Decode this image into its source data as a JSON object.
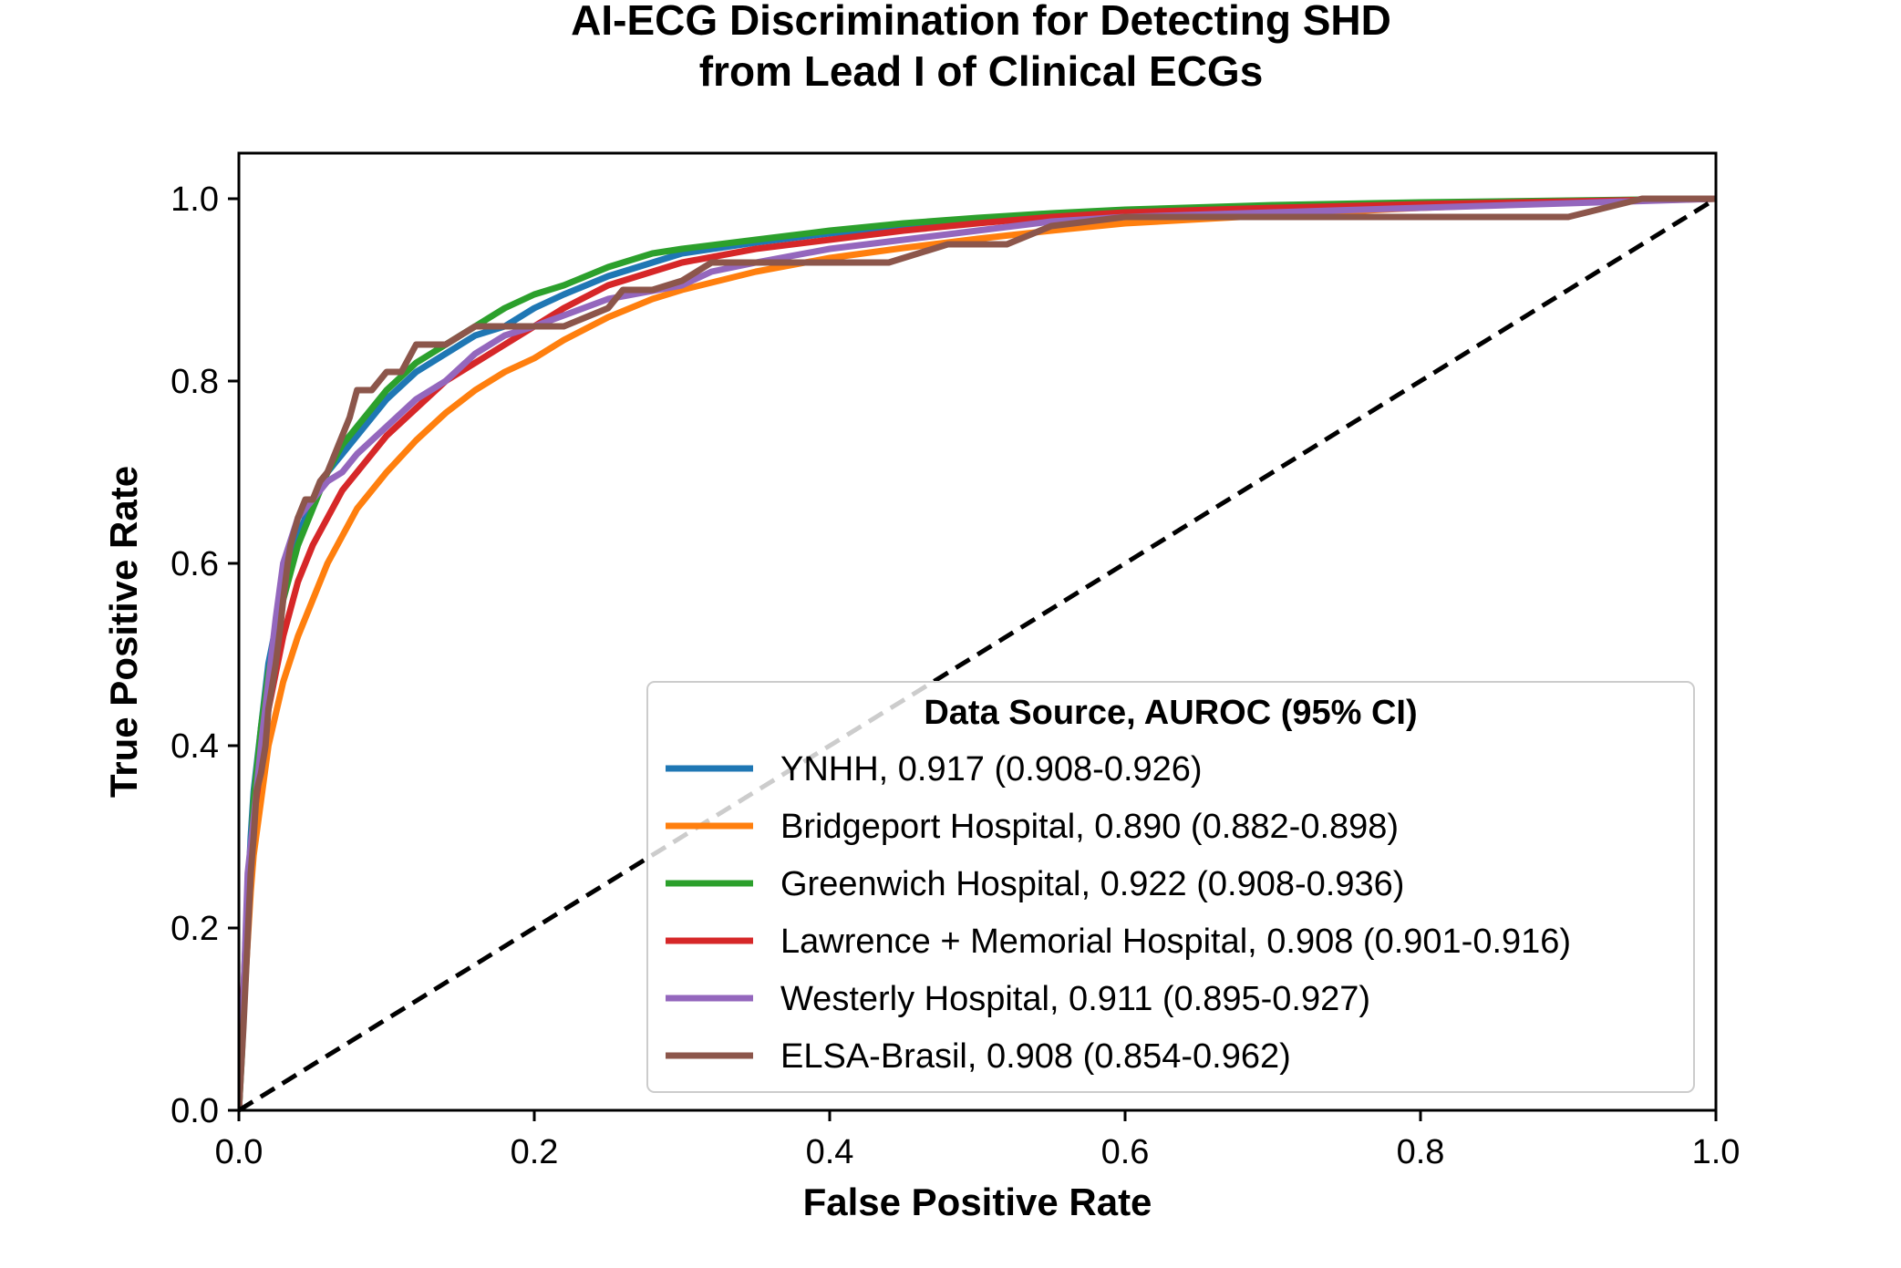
{
  "chart_data": {
    "type": "line",
    "title": [
      "AI-ECG Discrimination for Detecting SHD",
      "from Lead I of Clinical ECGs"
    ],
    "xlabel": "False Positive Rate",
    "ylabel": "True Positive Rate",
    "xlim": [
      0.0,
      1.0
    ],
    "ylim": [
      0.0,
      1.05
    ],
    "xticks": [
      "0.0",
      "0.2",
      "0.4",
      "0.6",
      "0.8",
      "1.0"
    ],
    "yticks": [
      "0.0",
      "0.2",
      "0.4",
      "0.6",
      "0.8",
      "1.0"
    ],
    "grid": false,
    "legend": {
      "title": "Data Source, AUROC (95% CI)",
      "placement": "lower-right"
    },
    "reference_line": {
      "style": "dashed",
      "color": "#000000",
      "x": [
        0.0,
        1.0
      ],
      "y": [
        0.0,
        1.0
      ]
    },
    "series": [
      {
        "name": "YNHH, 0.917 (0.908-0.926)",
        "color": "#1f77b4",
        "x": [
          0,
          0.002,
          0.005,
          0.008,
          0.01,
          0.015,
          0.02,
          0.03,
          0.04,
          0.05,
          0.06,
          0.07,
          0.08,
          0.1,
          0.12,
          0.14,
          0.16,
          0.18,
          0.2,
          0.22,
          0.25,
          0.28,
          0.3,
          0.35,
          0.4,
          0.45,
          0.5,
          0.55,
          0.6,
          0.7,
          0.8,
          0.9,
          1.0
        ],
        "y": [
          0,
          0.08,
          0.2,
          0.3,
          0.35,
          0.42,
          0.49,
          0.57,
          0.63,
          0.67,
          0.7,
          0.72,
          0.74,
          0.78,
          0.81,
          0.83,
          0.85,
          0.86,
          0.88,
          0.895,
          0.915,
          0.93,
          0.94,
          0.952,
          0.962,
          0.97,
          0.976,
          0.982,
          0.986,
          0.99,
          0.994,
          0.997,
          1.0
        ]
      },
      {
        "name": "Bridgeport Hospital, 0.890 (0.882-0.898)",
        "color": "#ff7f0e",
        "x": [
          0,
          0.002,
          0.005,
          0.008,
          0.01,
          0.015,
          0.02,
          0.03,
          0.04,
          0.05,
          0.06,
          0.07,
          0.08,
          0.1,
          0.12,
          0.14,
          0.16,
          0.18,
          0.2,
          0.22,
          0.25,
          0.28,
          0.3,
          0.35,
          0.4,
          0.45,
          0.5,
          0.55,
          0.6,
          0.7,
          0.8,
          0.9,
          1.0
        ],
        "y": [
          0,
          0.07,
          0.16,
          0.24,
          0.28,
          0.34,
          0.4,
          0.47,
          0.52,
          0.56,
          0.6,
          0.63,
          0.66,
          0.7,
          0.735,
          0.765,
          0.79,
          0.81,
          0.825,
          0.845,
          0.87,
          0.89,
          0.9,
          0.92,
          0.935,
          0.946,
          0.956,
          0.965,
          0.973,
          0.982,
          0.99,
          0.996,
          1.0
        ]
      },
      {
        "name": "Greenwich Hospital, 0.922 (0.908-0.936)",
        "color": "#2ca02c",
        "x": [
          0,
          0.002,
          0.005,
          0.008,
          0.01,
          0.015,
          0.02,
          0.03,
          0.04,
          0.05,
          0.06,
          0.07,
          0.08,
          0.1,
          0.12,
          0.14,
          0.16,
          0.18,
          0.2,
          0.22,
          0.25,
          0.28,
          0.3,
          0.35,
          0.4,
          0.45,
          0.5,
          0.55,
          0.6,
          0.7,
          0.8,
          0.9,
          1.0
        ],
        "y": [
          0,
          0.06,
          0.17,
          0.28,
          0.34,
          0.42,
          0.48,
          0.56,
          0.62,
          0.66,
          0.7,
          0.73,
          0.75,
          0.79,
          0.82,
          0.84,
          0.86,
          0.88,
          0.895,
          0.905,
          0.925,
          0.94,
          0.945,
          0.955,
          0.965,
          0.973,
          0.979,
          0.984,
          0.988,
          0.993,
          0.996,
          0.998,
          1.0
        ]
      },
      {
        "name": "Lawrence + Memorial Hospital, 0.908 (0.901-0.916)",
        "color": "#d62728",
        "x": [
          0,
          0.002,
          0.005,
          0.008,
          0.01,
          0.015,
          0.02,
          0.03,
          0.04,
          0.05,
          0.06,
          0.07,
          0.08,
          0.1,
          0.12,
          0.14,
          0.16,
          0.18,
          0.2,
          0.22,
          0.25,
          0.28,
          0.3,
          0.35,
          0.4,
          0.45,
          0.5,
          0.55,
          0.6,
          0.7,
          0.8,
          0.9,
          1.0
        ],
        "y": [
          0,
          0.09,
          0.2,
          0.28,
          0.32,
          0.38,
          0.44,
          0.52,
          0.58,
          0.62,
          0.65,
          0.68,
          0.7,
          0.74,
          0.77,
          0.8,
          0.82,
          0.84,
          0.86,
          0.88,
          0.905,
          0.92,
          0.93,
          0.945,
          0.955,
          0.965,
          0.973,
          0.98,
          0.985,
          0.99,
          0.994,
          0.997,
          1.0
        ]
      },
      {
        "name": "Westerly Hospital, 0.911 (0.895-0.927)",
        "color": "#9467bd",
        "x": [
          0,
          0.003,
          0.006,
          0.01,
          0.015,
          0.02,
          0.025,
          0.03,
          0.04,
          0.05,
          0.06,
          0.07,
          0.08,
          0.1,
          0.12,
          0.14,
          0.16,
          0.18,
          0.2,
          0.25,
          0.3,
          0.32,
          0.35,
          0.4,
          0.45,
          0.5,
          0.55,
          0.6,
          0.7,
          0.8,
          0.9,
          1.0
        ],
        "y": [
          0,
          0.12,
          0.26,
          0.32,
          0.4,
          0.47,
          0.54,
          0.6,
          0.65,
          0.67,
          0.69,
          0.7,
          0.72,
          0.75,
          0.78,
          0.8,
          0.83,
          0.85,
          0.86,
          0.89,
          0.905,
          0.92,
          0.93,
          0.945,
          0.955,
          0.965,
          0.975,
          0.98,
          0.985,
          0.99,
          0.995,
          1.0
        ]
      },
      {
        "name": "ELSA-Brasil, 0.908 (0.854-0.962)",
        "color": "#8c564b",
        "x": [
          0,
          0.003,
          0.006,
          0.008,
          0.01,
          0.012,
          0.015,
          0.018,
          0.02,
          0.025,
          0.028,
          0.03,
          0.033,
          0.035,
          0.04,
          0.045,
          0.05,
          0.055,
          0.06,
          0.065,
          0.07,
          0.075,
          0.08,
          0.09,
          0.1,
          0.11,
          0.12,
          0.14,
          0.16,
          0.18,
          0.2,
          0.22,
          0.25,
          0.26,
          0.28,
          0.3,
          0.32,
          0.36,
          0.4,
          0.44,
          0.48,
          0.52,
          0.55,
          0.6,
          0.7,
          0.8,
          0.9,
          0.95,
          1.0
        ],
        "y": [
          0,
          0.09,
          0.19,
          0.26,
          0.3,
          0.35,
          0.37,
          0.4,
          0.44,
          0.49,
          0.53,
          0.56,
          0.6,
          0.62,
          0.65,
          0.67,
          0.67,
          0.69,
          0.7,
          0.72,
          0.74,
          0.76,
          0.79,
          0.79,
          0.81,
          0.81,
          0.84,
          0.84,
          0.86,
          0.86,
          0.86,
          0.86,
          0.88,
          0.9,
          0.9,
          0.91,
          0.93,
          0.93,
          0.93,
          0.93,
          0.95,
          0.95,
          0.97,
          0.98,
          0.98,
          0.98,
          0.98,
          1.0,
          1.0
        ]
      }
    ]
  }
}
